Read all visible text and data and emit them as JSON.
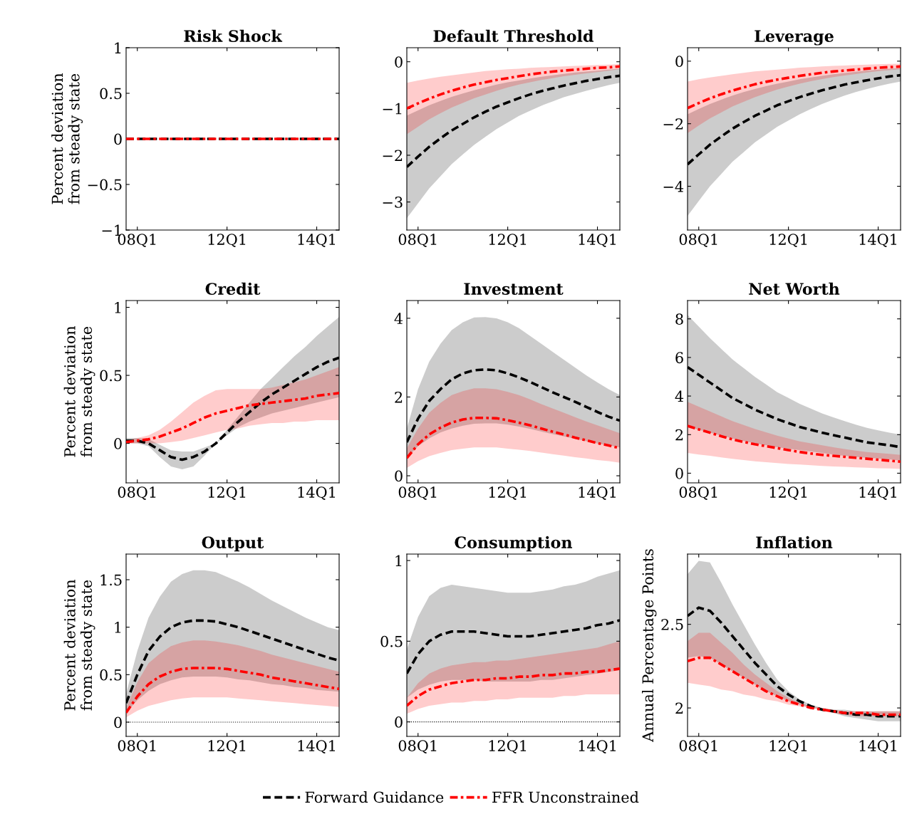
{
  "chart_data": [
    {
      "type": "line",
      "title": "Risk Shock",
      "ylabel": "Percent deviation\nfrom steady state",
      "categories": [
        null,
        "08Q1",
        null,
        null,
        null,
        null,
        null,
        null,
        null,
        "12Q1",
        null,
        null,
        null,
        null,
        null,
        null,
        null,
        "14Q1",
        null,
        null
      ],
      "ylim": [
        -1,
        1
      ],
      "yticks": [
        {
          "value": -1,
          "label": "−1"
        },
        {
          "value": -0.5,
          "label": "−0.5"
        },
        0,
        0.5,
        1
      ],
      "legend": "bottom",
      "series": [
        {
          "name": "Forward Guidance",
          "color": "#000000",
          "line_style": "dashed",
          "values": [
            0,
            0,
            0,
            0,
            0,
            0,
            0,
            0,
            0,
            0,
            0,
            0,
            0,
            0,
            0,
            0,
            0,
            0,
            0,
            0
          ]
        },
        {
          "name": "FFR Unconstrained",
          "color": "#ff0000",
          "line_style": "dashdot",
          "values": [
            0,
            0,
            0,
            0,
            0,
            0,
            0,
            0,
            0,
            0,
            0,
            0,
            0,
            0,
            0,
            0,
            0,
            0,
            0,
            0
          ]
        }
      ]
    },
    {
      "type": "line",
      "title": "Default Threshold",
      "categories": [
        null,
        "08Q1",
        null,
        null,
        null,
        null,
        null,
        null,
        null,
        "12Q1",
        null,
        null,
        null,
        null,
        null,
        null,
        null,
        "14Q1",
        null,
        null
      ],
      "ylim": [
        -3.6,
        0.3
      ],
      "yticks": [
        {
          "value": -3,
          "label": "−3"
        },
        {
          "value": -2,
          "label": "−2"
        },
        {
          "value": -1,
          "label": "−1"
        },
        0
      ],
      "series": [
        {
          "color": "#000000",
          "line_style": "dashed",
          "values": [
            -2.25,
            -2.03,
            -1.82,
            -1.64,
            -1.47,
            -1.33,
            -1.19,
            -1.07,
            -0.96,
            -0.87,
            -0.78,
            -0.7,
            -0.63,
            -0.57,
            -0.51,
            -0.46,
            -0.41,
            -0.37,
            -0.33,
            -0.3
          ],
          "lower": [
            -3.35,
            -3.03,
            -2.71,
            -2.45,
            -2.19,
            -1.98,
            -1.78,
            -1.61,
            -1.44,
            -1.3,
            -1.16,
            -1.05,
            -0.94,
            -0.85,
            -0.76,
            -0.69,
            -0.62,
            -0.56,
            -0.5,
            -0.45
          ],
          "upper": [
            -1.15,
            -1.04,
            -0.93,
            -0.84,
            -0.75,
            -0.68,
            -0.61,
            -0.55,
            -0.49,
            -0.44,
            -0.4,
            -0.36,
            -0.32,
            -0.29,
            -0.26,
            -0.23,
            -0.21,
            -0.19,
            -0.17,
            -0.15
          ]
        },
        {
          "color": "#ff0000",
          "line_style": "dashdot",
          "values": [
            -1.0,
            -0.89,
            -0.79,
            -0.7,
            -0.62,
            -0.55,
            -0.49,
            -0.44,
            -0.39,
            -0.35,
            -0.31,
            -0.27,
            -0.24,
            -0.21,
            -0.19,
            -0.17,
            -0.15,
            -0.13,
            -0.12,
            -0.1
          ],
          "lower": [
            -1.55,
            -1.39,
            -1.23,
            -1.1,
            -0.98,
            -0.88,
            -0.78,
            -0.7,
            -0.62,
            -0.55,
            -0.49,
            -0.44,
            -0.39,
            -0.35,
            -0.31,
            -0.28,
            -0.25,
            -0.22,
            -0.19,
            -0.16
          ],
          "upper": [
            -0.45,
            -0.4,
            -0.36,
            -0.32,
            -0.29,
            -0.26,
            -0.23,
            -0.2,
            -0.18,
            -0.16,
            -0.15,
            -0.13,
            -0.12,
            -0.11,
            -0.1,
            -0.09,
            -0.08,
            -0.07,
            -0.06,
            -0.05
          ]
        }
      ]
    },
    {
      "type": "line",
      "title": "Leverage",
      "categories": [
        null,
        "08Q1",
        null,
        null,
        null,
        null,
        null,
        null,
        null,
        "12Q1",
        null,
        null,
        null,
        null,
        null,
        null,
        null,
        "14Q1",
        null,
        null
      ],
      "ylim": [
        -5.4,
        0.43
      ],
      "yticks": [
        {
          "value": -4,
          "label": "−4"
        },
        {
          "value": -2,
          "label": "−2"
        },
        0
      ],
      "series": [
        {
          "color": "#000000",
          "line_style": "dashed",
          "values": [
            -3.3,
            -2.98,
            -2.67,
            -2.41,
            -2.16,
            -1.95,
            -1.75,
            -1.58,
            -1.41,
            -1.28,
            -1.15,
            -1.04,
            -0.93,
            -0.84,
            -0.75,
            -0.68,
            -0.61,
            -0.55,
            -0.49,
            -0.45
          ],
          "lower": [
            -4.95,
            -4.47,
            -4.0,
            -3.61,
            -3.22,
            -2.91,
            -2.6,
            -2.35,
            -2.1,
            -1.9,
            -1.7,
            -1.53,
            -1.37,
            -1.23,
            -1.1,
            -0.99,
            -0.89,
            -0.8,
            -0.72,
            -0.65
          ],
          "upper": [
            -1.7,
            -1.53,
            -1.37,
            -1.23,
            -1.1,
            -0.99,
            -0.89,
            -0.8,
            -0.72,
            -0.65,
            -0.58,
            -0.52,
            -0.47,
            -0.42,
            -0.38,
            -0.34,
            -0.3,
            -0.27,
            -0.24,
            -0.22
          ]
        },
        {
          "color": "#ff0000",
          "line_style": "dashdot",
          "values": [
            -1.5,
            -1.34,
            -1.19,
            -1.06,
            -0.94,
            -0.84,
            -0.74,
            -0.66,
            -0.59,
            -0.53,
            -0.47,
            -0.42,
            -0.37,
            -0.33,
            -0.3,
            -0.27,
            -0.24,
            -0.21,
            -0.19,
            -0.17
          ],
          "lower": [
            -2.3,
            -2.06,
            -1.83,
            -1.64,
            -1.45,
            -1.3,
            -1.15,
            -1.03,
            -0.91,
            -0.81,
            -0.72,
            -0.64,
            -0.57,
            -0.51,
            -0.46,
            -0.41,
            -0.36,
            -0.32,
            -0.29,
            -0.26
          ],
          "upper": [
            -0.65,
            -0.58,
            -0.52,
            -0.47,
            -0.42,
            -0.37,
            -0.33,
            -0.3,
            -0.27,
            -0.24,
            -0.21,
            -0.19,
            -0.17,
            -0.15,
            -0.14,
            -0.12,
            -0.11,
            -0.1,
            -0.09,
            -0.08
          ]
        }
      ]
    },
    {
      "type": "line",
      "title": "Credit",
      "ylabel": "Percent deviation\nfrom steady state",
      "categories": [
        null,
        "08Q1",
        null,
        null,
        null,
        null,
        null,
        null,
        null,
        "12Q1",
        null,
        null,
        null,
        null,
        null,
        null,
        null,
        "14Q1",
        null,
        null
      ],
      "ylim": [
        -0.29,
        1.05
      ],
      "yticks": [
        0,
        0.5,
        1
      ],
      "series": [
        {
          "color": "#000000",
          "line_style": "dashed",
          "values": [
            0.02,
            0.02,
            0.0,
            -0.05,
            -0.1,
            -0.12,
            -0.1,
            -0.06,
            0.0,
            0.08,
            0.16,
            0.23,
            0.3,
            0.36,
            0.41,
            0.46,
            0.51,
            0.56,
            0.6,
            0.63
          ],
          "lower": [
            0.0,
            0.0,
            -0.02,
            -0.1,
            -0.17,
            -0.19,
            -0.17,
            -0.09,
            0.0,
            0.06,
            0.12,
            0.16,
            0.19,
            0.22,
            0.24,
            0.26,
            0.28,
            0.3,
            0.32,
            0.34
          ],
          "upper": [
            0.04,
            0.04,
            0.03,
            -0.01,
            -0.05,
            -0.06,
            -0.06,
            -0.03,
            0.0,
            0.1,
            0.2,
            0.3,
            0.4,
            0.48,
            0.56,
            0.64,
            0.71,
            0.79,
            0.86,
            0.93
          ]
        },
        {
          "color": "#ff0000",
          "line_style": "dashdot",
          "values": [
            0.01,
            0.02,
            0.03,
            0.05,
            0.08,
            0.11,
            0.15,
            0.19,
            0.22,
            0.24,
            0.26,
            0.28,
            0.29,
            0.3,
            0.31,
            0.32,
            0.33,
            0.35,
            0.36,
            0.37
          ],
          "lower": [
            0.0,
            0.0,
            0.0,
            0.0,
            0.01,
            0.02,
            0.04,
            0.06,
            0.08,
            0.1,
            0.11,
            0.13,
            0.14,
            0.15,
            0.15,
            0.16,
            0.16,
            0.17,
            0.17,
            0.17
          ],
          "upper": [
            0.02,
            0.04,
            0.06,
            0.1,
            0.16,
            0.23,
            0.3,
            0.35,
            0.39,
            0.4,
            0.4,
            0.4,
            0.4,
            0.41,
            0.43,
            0.45,
            0.47,
            0.5,
            0.53,
            0.56
          ]
        }
      ]
    },
    {
      "type": "line",
      "title": "Investment",
      "categories": [
        null,
        "08Q1",
        null,
        null,
        null,
        null,
        null,
        null,
        null,
        "12Q1",
        null,
        null,
        null,
        null,
        null,
        null,
        null,
        "14Q1",
        null,
        null
      ],
      "ylim": [
        -0.18,
        4.45
      ],
      "yticks": [
        0,
        2,
        4
      ],
      "series": [
        {
          "color": "#000000",
          "line_style": "dashed",
          "values": [
            0.85,
            1.45,
            1.9,
            2.2,
            2.45,
            2.6,
            2.68,
            2.7,
            2.68,
            2.6,
            2.5,
            2.38,
            2.25,
            2.12,
            2.0,
            1.88,
            1.75,
            1.62,
            1.5,
            1.4
          ],
          "lower": [
            0.45,
            0.75,
            0.95,
            1.1,
            1.2,
            1.27,
            1.32,
            1.33,
            1.33,
            1.3,
            1.25,
            1.19,
            1.12,
            1.06,
            1.0,
            0.94,
            0.88,
            0.82,
            0.77,
            0.72
          ],
          "upper": [
            1.2,
            2.2,
            2.9,
            3.35,
            3.7,
            3.9,
            4.02,
            4.03,
            4.0,
            3.9,
            3.75,
            3.55,
            3.35,
            3.15,
            2.95,
            2.75,
            2.55,
            2.37,
            2.2,
            2.05
          ]
        },
        {
          "color": "#ff0000",
          "line_style": "dashdot",
          "values": [
            0.45,
            0.8,
            1.05,
            1.22,
            1.35,
            1.43,
            1.47,
            1.47,
            1.46,
            1.41,
            1.35,
            1.28,
            1.2,
            1.12,
            1.05,
            0.97,
            0.9,
            0.83,
            0.77,
            0.7
          ],
          "lower": [
            0.2,
            0.37,
            0.5,
            0.58,
            0.65,
            0.69,
            0.72,
            0.72,
            0.72,
            0.69,
            0.66,
            0.63,
            0.59,
            0.55,
            0.51,
            0.47,
            0.44,
            0.4,
            0.37,
            0.33
          ],
          "upper": [
            0.7,
            1.2,
            1.6,
            1.85,
            2.05,
            2.15,
            2.22,
            2.22,
            2.2,
            2.13,
            2.05,
            1.94,
            1.82,
            1.71,
            1.6,
            1.49,
            1.38,
            1.28,
            1.18,
            1.08
          ]
        }
      ]
    },
    {
      "type": "line",
      "title": "Net Worth",
      "categories": [
        null,
        "08Q1",
        null,
        null,
        null,
        null,
        null,
        null,
        null,
        "12Q1",
        null,
        null,
        null,
        null,
        null,
        null,
        null,
        "14Q1",
        null,
        null
      ],
      "ylim": [
        -0.5,
        8.95
      ],
      "yticks": [
        0,
        2,
        4,
        6,
        8
      ],
      "series": [
        {
          "color": "#000000",
          "line_style": "dashed",
          "values": [
            5.5,
            5.1,
            4.7,
            4.3,
            3.9,
            3.6,
            3.3,
            3.05,
            2.8,
            2.6,
            2.4,
            2.25,
            2.1,
            1.97,
            1.85,
            1.72,
            1.6,
            1.52,
            1.45,
            1.35
          ],
          "lower": [
            2.4,
            2.25,
            2.1,
            1.95,
            1.8,
            1.67,
            1.55,
            1.45,
            1.35,
            1.27,
            1.2,
            1.12,
            1.05,
            0.97,
            0.9,
            0.85,
            0.8,
            0.76,
            0.72,
            0.65
          ],
          "upper": [
            8.2,
            7.6,
            7.0,
            6.45,
            5.9,
            5.45,
            5.0,
            4.6,
            4.2,
            3.9,
            3.6,
            3.35,
            3.1,
            2.9,
            2.7,
            2.52,
            2.35,
            2.22,
            2.1,
            2.0
          ]
        },
        {
          "color": "#ff0000",
          "line_style": "dashdot",
          "values": [
            2.45,
            2.27,
            2.1,
            1.92,
            1.75,
            1.62,
            1.5,
            1.4,
            1.3,
            1.2,
            1.1,
            1.02,
            0.95,
            0.9,
            0.85,
            0.8,
            0.75,
            0.7,
            0.65,
            0.6
          ],
          "lower": [
            1.05,
            0.97,
            0.9,
            0.82,
            0.75,
            0.68,
            0.62,
            0.57,
            0.52,
            0.48,
            0.45,
            0.41,
            0.38,
            0.35,
            0.33,
            0.3,
            0.28,
            0.26,
            0.25,
            0.22
          ],
          "upper": [
            3.7,
            3.45,
            3.2,
            2.95,
            2.7,
            2.5,
            2.3,
            2.12,
            1.95,
            1.8,
            1.65,
            1.55,
            1.45,
            1.35,
            1.25,
            1.17,
            1.1,
            1.05,
            1.0,
            0.95
          ]
        }
      ]
    },
    {
      "type": "line",
      "title": "Output",
      "ylabel": "Percent deviation\nfrom steady state",
      "categories": [
        null,
        "08Q1",
        null,
        null,
        null,
        null,
        null,
        null,
        null,
        "12Q1",
        null,
        null,
        null,
        null,
        null,
        null,
        null,
        "14Q1",
        null,
        null
      ],
      "ylim": [
        -0.15,
        1.77
      ],
      "yticks": [
        0,
        0.5,
        1,
        1.5
      ],
      "ref_lines": [
        {
          "axis": "y",
          "value": 0,
          "color": "#000000",
          "line_style": "dotted"
        }
      ],
      "series": [
        {
          "color": "#000000",
          "line_style": "dashed",
          "values": [
            0.2,
            0.5,
            0.75,
            0.9,
            1.0,
            1.05,
            1.07,
            1.07,
            1.06,
            1.03,
            1.0,
            0.96,
            0.92,
            0.88,
            0.84,
            0.8,
            0.76,
            0.72,
            0.68,
            0.65
          ],
          "lower": [
            0.1,
            0.23,
            0.33,
            0.4,
            0.44,
            0.47,
            0.48,
            0.48,
            0.48,
            0.47,
            0.45,
            0.44,
            0.42,
            0.4,
            0.39,
            0.37,
            0.36,
            0.34,
            0.33,
            0.32
          ],
          "upper": [
            0.3,
            0.75,
            1.1,
            1.32,
            1.48,
            1.56,
            1.6,
            1.6,
            1.58,
            1.53,
            1.48,
            1.42,
            1.35,
            1.28,
            1.22,
            1.16,
            1.1,
            1.05,
            1.0,
            0.97
          ]
        },
        {
          "color": "#ff0000",
          "line_style": "dashdot",
          "values": [
            0.1,
            0.27,
            0.4,
            0.48,
            0.53,
            0.56,
            0.57,
            0.57,
            0.57,
            0.56,
            0.54,
            0.52,
            0.5,
            0.47,
            0.45,
            0.43,
            0.41,
            0.39,
            0.37,
            0.35
          ],
          "lower": [
            0.05,
            0.12,
            0.17,
            0.2,
            0.23,
            0.25,
            0.26,
            0.26,
            0.26,
            0.26,
            0.25,
            0.24,
            0.23,
            0.22,
            0.21,
            0.2,
            0.19,
            0.18,
            0.17,
            0.16
          ],
          "upper": [
            0.15,
            0.42,
            0.62,
            0.72,
            0.8,
            0.84,
            0.86,
            0.86,
            0.85,
            0.83,
            0.81,
            0.78,
            0.75,
            0.71,
            0.68,
            0.65,
            0.62,
            0.59,
            0.56,
            0.53
          ]
        }
      ]
    },
    {
      "type": "line",
      "title": "Consumption",
      "categories": [
        null,
        "08Q1",
        null,
        null,
        null,
        null,
        null,
        null,
        null,
        "12Q1",
        null,
        null,
        null,
        null,
        null,
        null,
        null,
        "14Q1",
        null,
        null
      ],
      "ylim": [
        -0.09,
        1.04
      ],
      "yticks": [
        0,
        0.5,
        1
      ],
      "ref_lines": [
        {
          "axis": "y",
          "value": 0,
          "color": "#000000",
          "line_style": "dotted"
        }
      ],
      "series": [
        {
          "color": "#000000",
          "line_style": "dashed",
          "values": [
            0.3,
            0.42,
            0.5,
            0.54,
            0.56,
            0.56,
            0.56,
            0.55,
            0.54,
            0.53,
            0.53,
            0.53,
            0.54,
            0.55,
            0.56,
            0.57,
            0.58,
            0.6,
            0.61,
            0.63
          ],
          "lower": [
            0.15,
            0.2,
            0.23,
            0.25,
            0.26,
            0.26,
            0.26,
            0.25,
            0.25,
            0.25,
            0.25,
            0.25,
            0.26,
            0.26,
            0.27,
            0.28,
            0.29,
            0.3,
            0.31,
            0.32
          ],
          "upper": [
            0.45,
            0.65,
            0.78,
            0.83,
            0.85,
            0.84,
            0.83,
            0.82,
            0.81,
            0.8,
            0.8,
            0.8,
            0.81,
            0.82,
            0.84,
            0.85,
            0.87,
            0.9,
            0.92,
            0.94
          ]
        },
        {
          "color": "#ff0000",
          "line_style": "dashdot",
          "values": [
            0.1,
            0.16,
            0.2,
            0.22,
            0.24,
            0.25,
            0.26,
            0.26,
            0.27,
            0.27,
            0.28,
            0.28,
            0.29,
            0.29,
            0.3,
            0.3,
            0.31,
            0.31,
            0.32,
            0.33
          ],
          "lower": [
            0.05,
            0.08,
            0.1,
            0.11,
            0.12,
            0.12,
            0.13,
            0.13,
            0.14,
            0.14,
            0.15,
            0.15,
            0.15,
            0.15,
            0.16,
            0.16,
            0.17,
            0.17,
            0.17,
            0.17
          ],
          "upper": [
            0.15,
            0.24,
            0.3,
            0.33,
            0.35,
            0.36,
            0.37,
            0.37,
            0.38,
            0.38,
            0.39,
            0.4,
            0.41,
            0.42,
            0.43,
            0.44,
            0.45,
            0.46,
            0.48,
            0.5
          ]
        }
      ]
    },
    {
      "type": "line",
      "title": "Inflation",
      "ylabel": "Annual Percentage Points",
      "categories": [
        null,
        "08Q1",
        null,
        null,
        null,
        null,
        null,
        null,
        null,
        "12Q1",
        null,
        null,
        null,
        null,
        null,
        null,
        null,
        "14Q1",
        null,
        null
      ],
      "ylim": [
        1.83,
        2.92
      ],
      "yticks": [
        2,
        2.5
      ],
      "series": [
        {
          "color": "#000000",
          "line_style": "dashed",
          "values": [
            2.55,
            2.6,
            2.58,
            2.51,
            2.43,
            2.35,
            2.27,
            2.2,
            2.13,
            2.08,
            2.04,
            2.01,
            1.99,
            1.98,
            1.97,
            1.96,
            1.96,
            1.95,
            1.95,
            1.95
          ],
          "lower": [
            2.3,
            2.31,
            2.3,
            2.26,
            2.22,
            2.18,
            2.14,
            2.1,
            2.07,
            2.04,
            2.02,
            2.0,
            1.99,
            1.97,
            1.95,
            1.94,
            1.93,
            1.92,
            1.92,
            1.92
          ],
          "upper": [
            2.8,
            2.88,
            2.87,
            2.75,
            2.62,
            2.5,
            2.38,
            2.27,
            2.17,
            2.1,
            2.05,
            2.02,
            2.0,
            1.99,
            1.99,
            1.98,
            1.98,
            1.98,
            1.98,
            1.98
          ]
        },
        {
          "color": "#ff0000",
          "line_style": "dashdot",
          "values": [
            2.28,
            2.3,
            2.3,
            2.26,
            2.22,
            2.18,
            2.14,
            2.1,
            2.07,
            2.04,
            2.02,
            2.0,
            1.99,
            1.98,
            1.97,
            1.97,
            1.97,
            1.96,
            1.96,
            1.96
          ],
          "lower": [
            2.15,
            2.14,
            2.13,
            2.11,
            2.1,
            2.08,
            2.07,
            2.05,
            2.04,
            2.02,
            2.01,
            2.0,
            1.99,
            1.97,
            1.96,
            1.95,
            1.95,
            1.95,
            1.95,
            1.95
          ],
          "upper": [
            2.4,
            2.45,
            2.45,
            2.39,
            2.33,
            2.26,
            2.2,
            2.15,
            2.1,
            2.06,
            2.03,
            2.01,
            2.0,
            1.99,
            1.98,
            1.98,
            1.98,
            1.98,
            1.98,
            1.98
          ]
        }
      ]
    }
  ]
}
